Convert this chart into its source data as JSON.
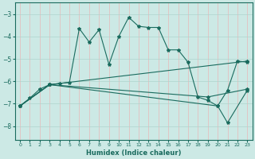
{
  "xlabel": "Humidex (Indice chaleur)",
  "xlim": [
    -0.5,
    23.5
  ],
  "ylim": [
    -8.6,
    -2.5
  ],
  "yticks": [
    -8,
    -7,
    -6,
    -5,
    -4,
    -3
  ],
  "xticks": [
    0,
    1,
    2,
    3,
    4,
    5,
    6,
    7,
    8,
    9,
    10,
    11,
    12,
    13,
    14,
    15,
    16,
    17,
    18,
    19,
    20,
    21,
    22,
    23
  ],
  "bg_color": "#cce9e5",
  "line_color": "#1a6b5e",
  "grid_color": "#aed4ce",
  "lines": [
    {
      "x": [
        0,
        1,
        2,
        3,
        4,
        5,
        6,
        7,
        8,
        9,
        10,
        11,
        12,
        13,
        14,
        15,
        16,
        17,
        18,
        19,
        20,
        21,
        22,
        23
      ],
      "y": [
        -7.1,
        -6.75,
        -6.35,
        -6.15,
        -6.1,
        -6.05,
        -3.65,
        -4.25,
        -3.7,
        -5.25,
        -4.0,
        -3.15,
        -3.55,
        -3.6,
        -3.6,
        -4.6,
        -4.6,
        -5.15,
        -6.7,
        -6.85,
        -7.1,
        -6.4,
        -5.1,
        -5.15
      ]
    },
    {
      "x": [
        0,
        3,
        23
      ],
      "y": [
        -7.1,
        -6.15,
        -5.1
      ]
    },
    {
      "x": [
        0,
        3,
        19,
        23
      ],
      "y": [
        -7.1,
        -6.15,
        -6.7,
        -6.35
      ]
    },
    {
      "x": [
        0,
        3,
        20,
        21,
        23
      ],
      "y": [
        -7.1,
        -6.15,
        -7.1,
        -7.85,
        -6.4
      ]
    }
  ],
  "figsize": [
    3.2,
    2.0
  ],
  "dpi": 100
}
